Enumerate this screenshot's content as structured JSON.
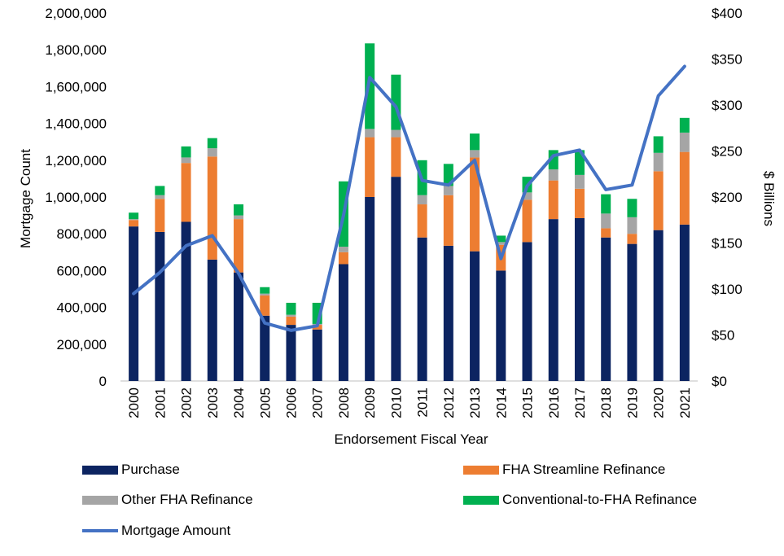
{
  "chart_data": {
    "type": "bar",
    "stacked": true,
    "xlabel": "Endorsement Fiscal Year",
    "ylabel": "Mortgage Count",
    "y2label": "$ Billions",
    "ylim": [
      0,
      2000000
    ],
    "y2lim": [
      0,
      400
    ],
    "yticks": [
      "0",
      "200,000",
      "400,000",
      "600,000",
      "800,000",
      "1,000,000",
      "1,200,000",
      "1,400,000",
      "1,600,000",
      "1,800,000",
      "2,000,000"
    ],
    "y2ticks": [
      "$0",
      "$50",
      "$100",
      "$150",
      "$200",
      "$250",
      "$300",
      "$350",
      "$400"
    ],
    "categories": [
      "2000",
      "2001",
      "2002",
      "2003",
      "2004",
      "2005",
      "2006",
      "2007",
      "2008",
      "2009",
      "2010",
      "2011",
      "2012",
      "2013",
      "2014",
      "2015",
      "2016",
      "2017",
      "2018",
      "2019",
      "2020",
      "2021"
    ],
    "series": [
      {
        "name": "Purchase",
        "color": "#0c2461",
        "axis": "left",
        "kind": "bar",
        "values": [
          840000,
          810000,
          865000,
          660000,
          590000,
          355000,
          305000,
          280000,
          635000,
          1000000,
          1110000,
          780000,
          735000,
          705000,
          600000,
          755000,
          880000,
          885000,
          780000,
          745000,
          820000,
          850000
        ]
      },
      {
        "name": "FHA Streamline Refinance",
        "color": "#ed7d31",
        "axis": "left",
        "kind": "bar",
        "values": [
          35000,
          180000,
          320000,
          560000,
          290000,
          110000,
          45000,
          25000,
          65000,
          325000,
          215000,
          180000,
          275000,
          510000,
          140000,
          230000,
          210000,
          160000,
          50000,
          55000,
          320000,
          395000
        ]
      },
      {
        "name": "Other FHA Refinance",
        "color": "#a5a5a5",
        "axis": "left",
        "kind": "bar",
        "values": [
          5000,
          20000,
          30000,
          45000,
          20000,
          10000,
          10000,
          5000,
          30000,
          45000,
          40000,
          50000,
          50000,
          40000,
          15000,
          40000,
          60000,
          75000,
          80000,
          90000,
          100000,
          105000
        ]
      },
      {
        "name": "Conventional-to-FHA Refinance",
        "color": "#00b050",
        "axis": "left",
        "kind": "bar",
        "values": [
          35000,
          50000,
          60000,
          55000,
          60000,
          35000,
          65000,
          115000,
          355000,
          465000,
          300000,
          190000,
          120000,
          90000,
          35000,
          85000,
          105000,
          135000,
          105000,
          100000,
          90000,
          80000
        ]
      },
      {
        "name": "Mortgage Amount",
        "color": "#4472c4",
        "axis": "right",
        "kind": "line",
        "values": [
          95,
          118,
          147,
          158,
          117,
          63,
          55,
          60,
          180,
          330,
          298,
          218,
          213,
          240,
          133,
          212,
          245,
          251,
          208,
          213,
          310,
          342
        ]
      }
    ],
    "legend_position": "bottom",
    "grid": false
  }
}
